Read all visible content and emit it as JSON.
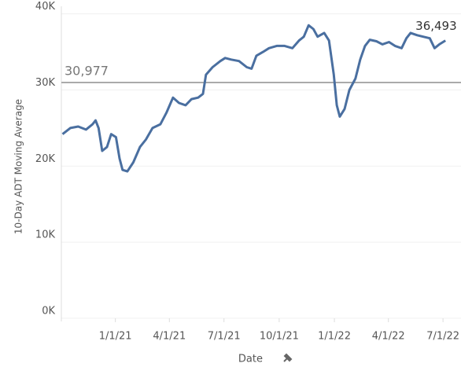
{
  "chart_data": {
    "type": "line",
    "y_axis_label": "10-Day ADT Moving Average",
    "x_axis_label": "Date",
    "x": [
      "2020-10-05",
      "2020-10-18",
      "2020-10-31",
      "2020-11-13",
      "2020-11-24",
      "2020-11-29",
      "2020-12-04",
      "2020-12-10",
      "2020-12-18",
      "2020-12-25",
      "2021-01-02",
      "2021-01-08",
      "2021-01-13",
      "2021-01-21",
      "2021-01-31",
      "2021-02-11",
      "2021-02-21",
      "2021-03-04",
      "2021-03-17",
      "2021-03-27",
      "2021-04-07",
      "2021-04-17",
      "2021-04-28",
      "2021-05-08",
      "2021-05-19",
      "2021-05-27",
      "2021-06-01",
      "2021-06-12",
      "2021-06-25",
      "2021-07-03",
      "2021-07-13",
      "2021-07-26",
      "2021-08-08",
      "2021-08-16",
      "2021-08-24",
      "2021-09-04",
      "2021-09-14",
      "2021-09-27",
      "2021-10-10",
      "2021-10-23",
      "2021-11-03",
      "2021-11-11",
      "2021-11-19",
      "2021-11-27",
      "2021-12-04",
      "2021-12-15",
      "2021-12-23",
      "2021-12-31",
      "2022-01-05",
      "2022-01-10",
      "2022-01-18",
      "2022-01-26",
      "2022-02-05",
      "2022-02-13",
      "2022-02-21",
      "2022-03-01",
      "2022-03-12",
      "2022-03-22",
      "2022-04-02",
      "2022-04-12",
      "2022-04-23",
      "2022-05-01",
      "2022-05-08",
      "2022-05-19",
      "2022-05-29",
      "2022-06-09",
      "2022-06-17",
      "2022-06-25",
      "2022-07-05"
    ],
    "series": [
      {
        "name": "10-Day ADT Moving Average",
        "color": "#4a6fa0",
        "values": [
          24200,
          25000,
          25200,
          24800,
          25500,
          26000,
          25000,
          22000,
          22500,
          24200,
          23800,
          21000,
          19500,
          19300,
          20500,
          22500,
          23500,
          25000,
          25500,
          27000,
          29000,
          28300,
          28000,
          28800,
          29000,
          29500,
          32000,
          33000,
          33800,
          34200,
          34000,
          33800,
          33000,
          32800,
          34500,
          35000,
          35500,
          35800,
          35800,
          35500,
          36500,
          37000,
          38500,
          38000,
          37000,
          37500,
          36500,
          32000,
          28000,
          26500,
          27500,
          30000,
          31500,
          34000,
          35800,
          36600,
          36400,
          36000,
          36300,
          35800,
          35500,
          36800,
          37500,
          37200,
          37000,
          36800,
          35500,
          36000,
          36493
        ],
        "end_label": "36,493"
      }
    ],
    "reference_line": {
      "value": 30977,
      "label": "30,977",
      "color": "#aaaaaa"
    },
    "xlim": [
      "2020-10-03",
      "2022-07-31"
    ],
    "xticks": [
      {
        "value": "2021-01-01",
        "label": "1/1/21"
      },
      {
        "value": "2021-04-01",
        "label": "4/1/21"
      },
      {
        "value": "2021-07-01",
        "label": "7/1/21"
      },
      {
        "value": "2021-10-01",
        "label": "10/1/21"
      },
      {
        "value": "2022-01-01",
        "label": "1/1/22"
      },
      {
        "value": "2022-04-01",
        "label": "4/1/22"
      },
      {
        "value": "2022-07-01",
        "label": "7/1/22"
      }
    ],
    "ylim": [
      0,
      41000
    ],
    "yticks": [
      {
        "value": 0,
        "label": "0K"
      },
      {
        "value": 10000,
        "label": "10K"
      },
      {
        "value": 20000,
        "label": "20K"
      },
      {
        "value": 30000,
        "label": "30K"
      },
      {
        "value": 40000,
        "label": "40K"
      }
    ],
    "grid": true
  }
}
